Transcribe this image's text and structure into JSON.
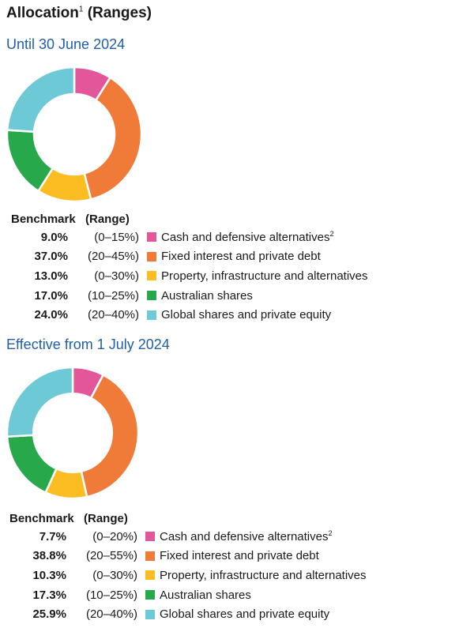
{
  "title": "Allocation",
  "title_note": "1",
  "title_suffix": "(Ranges)",
  "chart_data": [
    {
      "type": "pie",
      "subtitle": "Until 30 June 2024",
      "header": {
        "benchmark": "Benchmark",
        "range": "(Range)"
      },
      "slices": [
        {
          "label": "Cash and defensive alternatives",
          "note": "2",
          "benchmark": "9.0%",
          "range": "(0–15%)",
          "value": 9.0,
          "color": "#e4569a"
        },
        {
          "label": "Fixed interest and private debt",
          "note": "",
          "benchmark": "37.0%",
          "range": "(20–45%)",
          "value": 37.0,
          "color": "#f07b38"
        },
        {
          "label": "Property, infrastructure and alternatives",
          "note": "",
          "benchmark": "13.0%",
          "range": "(0–30%)",
          "value": 13.0,
          "color": "#fbbd22"
        },
        {
          "label": "Australian shares",
          "note": "",
          "benchmark": "17.0%",
          "range": "(10–25%)",
          "value": 17.0,
          "color": "#27a84a"
        },
        {
          "label": "Global shares and private equity",
          "note": "",
          "benchmark": "24.0%",
          "range": "(20–40%)",
          "value": 24.0,
          "color": "#6ec9d6"
        }
      ]
    },
    {
      "type": "pie",
      "subtitle": "Effective from 1 July 2024",
      "header": {
        "benchmark": "Benchmark",
        "range": "(Range)"
      },
      "slices": [
        {
          "label": "Cash and defensive alternatives",
          "note": "2",
          "benchmark": "7.7%",
          "range": "(0–20%)",
          "value": 7.7,
          "color": "#e4569a"
        },
        {
          "label": "Fixed interest and private debt",
          "note": "",
          "benchmark": "38.8%",
          "range": "(20–55%)",
          "value": 38.8,
          "color": "#f07b38"
        },
        {
          "label": "Property, infrastructure and alternatives",
          "note": "",
          "benchmark": "10.3%",
          "range": "(0–30%)",
          "value": 10.3,
          "color": "#fbbd22"
        },
        {
          "label": "Australian shares",
          "note": "",
          "benchmark": "17.3%",
          "range": "(10–25%)",
          "value": 17.3,
          "color": "#27a84a"
        },
        {
          "label": "Global shares and private equity",
          "note": "",
          "benchmark": "25.9%",
          "range": "(20–40%)",
          "value": 25.9,
          "color": "#6ec9d6"
        }
      ]
    }
  ]
}
